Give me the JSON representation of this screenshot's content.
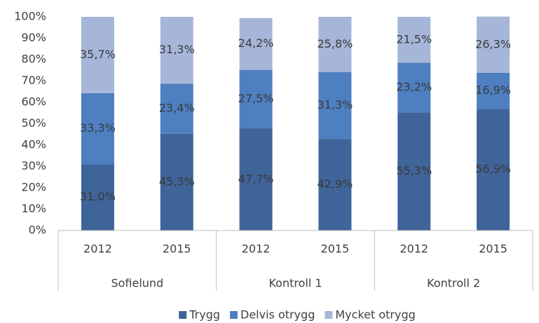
{
  "chart_data": {
    "type": "stacked_bar",
    "categories": [
      "2012",
      "2015",
      "2012",
      "2015",
      "2012",
      "2015"
    ],
    "groups": [
      "Sofielund",
      "Kontroll 1",
      "Kontroll 2"
    ],
    "series": [
      {
        "name": "Trygg",
        "color": "#3f6499",
        "values": [
          31.0,
          45.3,
          47.7,
          42.9,
          55.3,
          56.9
        ],
        "value_labels": [
          "31,0%",
          "45,3%",
          "47,7%",
          "42,9%",
          "55,3%",
          "56,9%"
        ]
      },
      {
        "name": "Delvis otrygg",
        "color": "#4e7fc0",
        "values": [
          33.3,
          23.4,
          27.5,
          31.3,
          23.2,
          16.9
        ],
        "value_labels": [
          "33,3%",
          "23,4%",
          "27,5%",
          "31,3%",
          "23,2%",
          "16,9%"
        ]
      },
      {
        "name": "Mycket otrygg",
        "color": "#a6b6d9",
        "values": [
          35.7,
          31.3,
          24.2,
          25.8,
          21.5,
          26.3
        ],
        "value_labels": [
          "35,7%",
          "31,3%",
          "24,2%",
          "25,8%",
          "21,5%",
          "26,3%"
        ]
      }
    ],
    "ylim": [
      0,
      100
    ],
    "yticks": [
      {
        "value": 0,
        "label": "0%"
      },
      {
        "value": 10,
        "label": "10%"
      },
      {
        "value": 20,
        "label": "20%"
      },
      {
        "value": 30,
        "label": "30%"
      },
      {
        "value": 40,
        "label": "40%"
      },
      {
        "value": 50,
        "label": "50%"
      },
      {
        "value": 60,
        "label": "60%"
      },
      {
        "value": 70,
        "label": "70%"
      },
      {
        "value": 80,
        "label": "80%"
      },
      {
        "value": 90,
        "label": "90%"
      },
      {
        "value": 100,
        "label": "100%"
      }
    ],
    "grid": false,
    "legend": "bottom"
  }
}
